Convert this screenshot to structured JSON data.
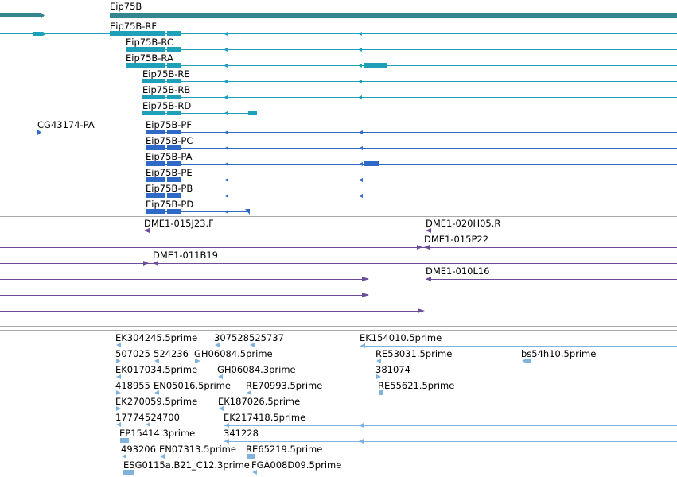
{
  "colors": {
    "gene": "#35878f",
    "transcript": "#1ea0b8",
    "protein": "#2f6ac6",
    "clone": "#6b4c9a",
    "est": "#7fb2dc",
    "separator": "#aaaaaa"
  },
  "tracks": {
    "gene": {
      "label": "Eip75B"
    },
    "transcripts": [
      {
        "id": "rf",
        "label": "Eip75B-RF"
      },
      {
        "id": "rc",
        "label": "Eip75B-RC"
      },
      {
        "id": "ra",
        "label": "Eip75B-RA"
      },
      {
        "id": "re",
        "label": "Eip75B-RE"
      },
      {
        "id": "rb",
        "label": "Eip75B-RB"
      },
      {
        "id": "rd",
        "label": "Eip75B-RD"
      }
    ],
    "proteins": [
      {
        "id": "cg43174",
        "label": "CG43174-PA"
      },
      {
        "id": "pf",
        "label": "Eip75B-PF"
      },
      {
        "id": "pc",
        "label": "Eip75B-PC"
      },
      {
        "id": "pa",
        "label": "Eip75B-PA"
      },
      {
        "id": "pe",
        "label": "Eip75B-PE"
      },
      {
        "id": "pb",
        "label": "Eip75B-PB"
      },
      {
        "id": "pd",
        "label": "Eip75B-PD"
      }
    ],
    "clones": [
      {
        "id": "015j23",
        "label": "DME1-015J23.F"
      },
      {
        "id": "020h05",
        "label": "DME1-020H05.R"
      },
      {
        "id": "015p22",
        "label": "DME1-015P22"
      },
      {
        "id": "011b19",
        "label": "DME1-011B19"
      },
      {
        "id": "010l16",
        "label": "DME1-010L16"
      }
    ],
    "ests": [
      {
        "id": "ek304245",
        "label": "EK304245.5prime"
      },
      {
        "id": "307528",
        "label": "307528"
      },
      {
        "id": "525737",
        "label": "525737"
      },
      {
        "id": "ek154010",
        "label": "EK154010.5prime"
      },
      {
        "id": "507025",
        "label": "507025"
      },
      {
        "id": "524236",
        "label": "524236"
      },
      {
        "id": "gh06084-5",
        "label": "GH06084.5prime"
      },
      {
        "id": "re53031",
        "label": "RE53031.5prime"
      },
      {
        "id": "bs54h10",
        "label": "bs54h10.5prime"
      },
      {
        "id": "ek017034",
        "label": "EK017034.5prime"
      },
      {
        "id": "gh06084-3",
        "label": "GH06084.3prime"
      },
      {
        "id": "381074",
        "label": "381074"
      },
      {
        "id": "418955",
        "label": "418955"
      },
      {
        "id": "en05016",
        "label": "EN05016.5prime"
      },
      {
        "id": "re70993",
        "label": "RE70993.5prime"
      },
      {
        "id": "re55621",
        "label": "RE55621.5prime"
      },
      {
        "id": "ek270059",
        "label": "EK270059.5prime"
      },
      {
        "id": "ek187026",
        "label": "EK187026.5prime"
      },
      {
        "id": "17774",
        "label": "17774"
      },
      {
        "id": "524700",
        "label": "524700"
      },
      {
        "id": "ek217418",
        "label": "EK217418.5prime"
      },
      {
        "id": "ep15414",
        "label": "EP15414.3prime"
      },
      {
        "id": "341228",
        "label": "341228"
      },
      {
        "id": "493206",
        "label": "493206"
      },
      {
        "id": "en07313",
        "label": "EN07313.5prime"
      },
      {
        "id": "re65219",
        "label": "RE65219.5prime"
      },
      {
        "id": "esg0115",
        "label": "ESG0115a.B21_C12.3prime"
      },
      {
        "id": "fga008d09",
        "label": "FGA008D09.5prime"
      }
    ]
  }
}
